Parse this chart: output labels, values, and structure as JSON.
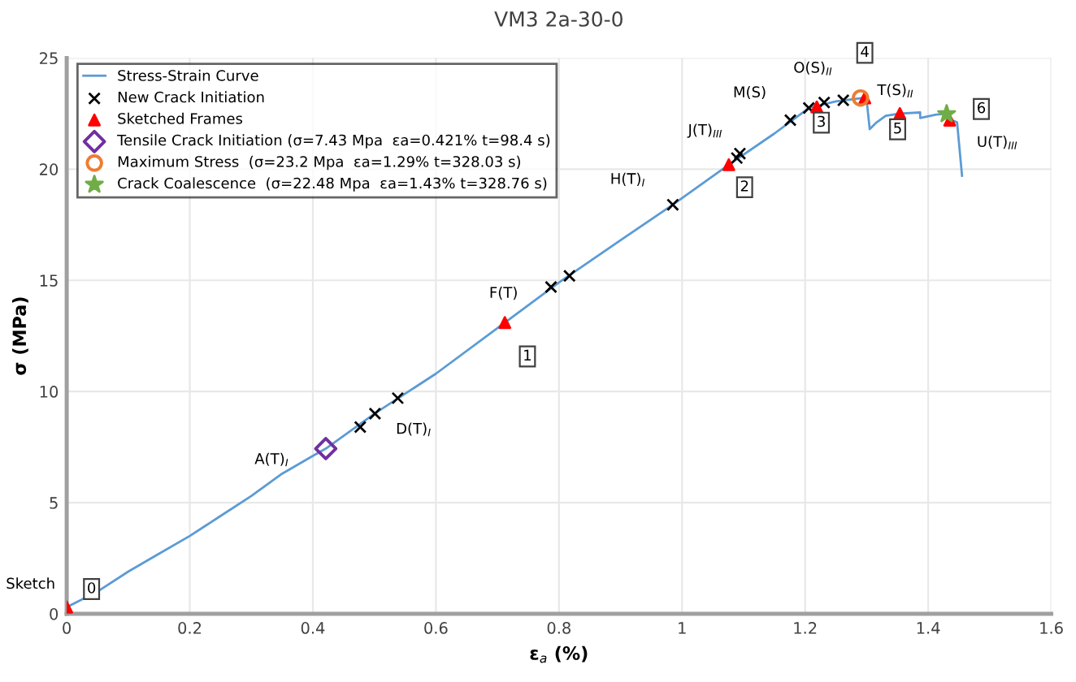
{
  "chart_data": {
    "type": "line",
    "title": "VM3 2a-30-0",
    "xlabel": "ε$_{a}$ (%)",
    "ylabel": "σ (MPa)",
    "xlim": [
      0,
      1.6
    ],
    "ylim": [
      0,
      25
    ],
    "xticks": [
      0,
      0.2,
      0.4,
      0.6,
      0.8,
      1,
      1.2,
      1.4,
      1.6
    ],
    "yticks": [
      0,
      5,
      10,
      15,
      20,
      25
    ],
    "grid": true,
    "legend": "top left",
    "series": [
      {
        "name": "Stress-Strain Curve",
        "color": "#5b9bd5",
        "marker": "none",
        "line_style": "solid",
        "x": [
          0,
          0.05,
          0.1,
          0.15,
          0.2,
          0.25,
          0.3,
          0.35,
          0.4,
          0.421,
          0.5,
          0.6,
          0.712,
          0.8,
          0.9,
          0.985,
          1.076,
          1.15,
          1.206,
          1.25,
          1.294,
          1.3,
          1.305,
          1.316,
          1.331,
          1.354,
          1.387,
          1.387,
          1.413,
          1.427,
          1.439,
          1.447,
          1.455
        ],
        "values": [
          0.3,
          1.0,
          1.9,
          2.7,
          3.5,
          4.4,
          5.3,
          6.3,
          7.1,
          7.43,
          9.0,
          10.8,
          13.1,
          14.9,
          16.8,
          18.4,
          20.2,
          21.6,
          22.75,
          23.05,
          23.2,
          23.1,
          21.8,
          22.1,
          22.4,
          22.5,
          22.55,
          22.3,
          22.45,
          22.48,
          22.2,
          22.1,
          19.7
        ]
      },
      {
        "name": "New Crack Initiation",
        "type": "scatter",
        "color": "#000000",
        "marker": "cross",
        "x": [
          0.477,
          0.501,
          0.538,
          0.787,
          0.817,
          0.985,
          1.089,
          1.094,
          1.176,
          1.206,
          1.231,
          1.262
        ],
        "values": [
          8.4,
          9.0,
          9.7,
          14.7,
          15.2,
          18.4,
          20.5,
          20.7,
          22.2,
          22.75,
          23.0,
          23.1
        ]
      },
      {
        "name": "Sketched Frames",
        "type": "scatter",
        "color": "#ff0000",
        "marker": "triangle",
        "x": [
          0,
          0.712,
          1.076,
          1.219,
          1.297,
          1.354,
          1.435
        ],
        "values": [
          0.3,
          13.1,
          20.2,
          22.8,
          23.2,
          22.5,
          22.2
        ]
      },
      {
        "name": "Tensile Crack Initiation (σ=7.43 Mpa  εa=0.421% t=98.4 s)",
        "type": "scatter",
        "color": "#7030a0",
        "marker": "diamond",
        "x": [
          0.421
        ],
        "values": [
          7.43
        ]
      },
      {
        "name": "Maximum Stress  (σ=23.2 Mpa  εa=1.29% t=328.03 s)",
        "type": "scatter",
        "color": "#ed7d31",
        "marker": "circle",
        "x": [
          1.29
        ],
        "values": [
          23.2
        ]
      },
      {
        "name": "Crack Coalescence  (σ=22.48 Mpa  εa=1.43% t=328.76 s)",
        "type": "scatter",
        "color": "#70ad47",
        "marker": "star",
        "x": [
          1.43
        ],
        "values": [
          22.48
        ]
      }
    ],
    "annotations": [
      {
        "text": "0",
        "x": 0,
        "y": 0.3
      },
      {
        "text": "1",
        "x": 0.712,
        "y": 13.1
      },
      {
        "text": "2",
        "x": 1.076,
        "y": 20.2
      },
      {
        "text": "3",
        "x": 1.219,
        "y": 22.8
      },
      {
        "text": "4",
        "x": 1.297,
        "y": 23.2
      },
      {
        "text": "5",
        "x": 1.354,
        "y": 22.5
      },
      {
        "text": "6",
        "x": 1.435,
        "y": 22.2
      },
      {
        "text": "Sketch",
        "x": 0,
        "y": 0.3
      },
      {
        "text": "A(T)$_{I}$",
        "x": 0.421,
        "y": 7.43
      },
      {
        "text": "D(T)$_{I}$",
        "x": 0.538,
        "y": 9.7
      },
      {
        "text": "F(T)",
        "x": 0.787,
        "y": 14.7
      },
      {
        "text": "H(T)$_{I}$",
        "x": 0.985,
        "y": 18.4
      },
      {
        "text": "J(T)$_{III}$",
        "x": 1.089,
        "y": 20.5
      },
      {
        "text": "M(S)",
        "x": 1.176,
        "y": 22.2
      },
      {
        "text": "O(S)$_{II}$",
        "x": 1.231,
        "y": 23.0
      },
      {
        "text": "T(S)$_{II}$",
        "x": 1.354,
        "y": 22.5
      },
      {
        "text": "U(T)$_{III}$",
        "x": 1.435,
        "y": 22.2
      }
    ]
  }
}
